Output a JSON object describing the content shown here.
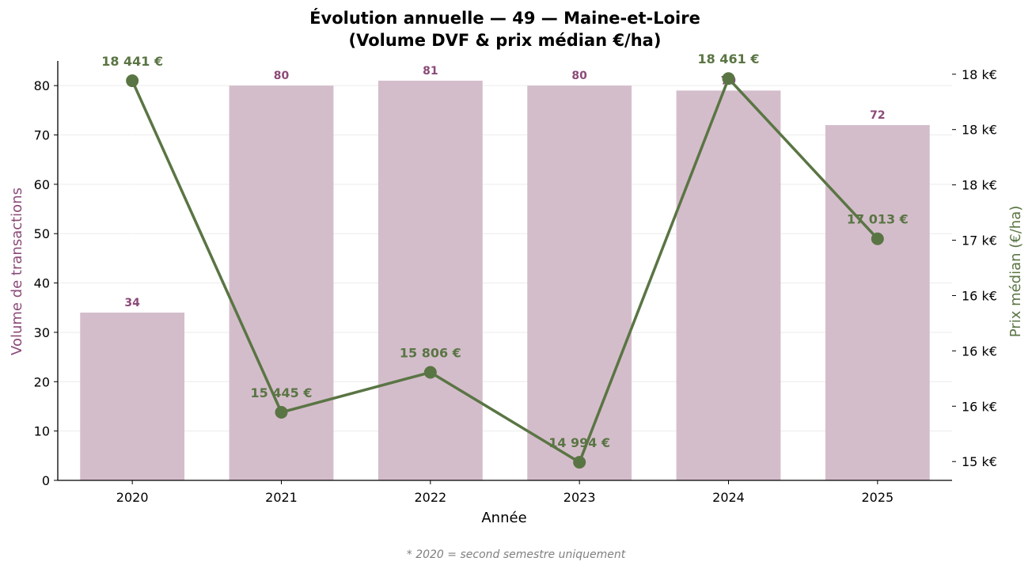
{
  "chart_data": {
    "type": "bar",
    "title_line1": "Évolution annuelle — 49 — Maine-et-Loire",
    "title_line2": "(Volume DVF & prix médian €/ha)",
    "xlabel": "Année",
    "ylabel_left": "Volume de transactions",
    "ylabel_right": "Prix médian (€/ha)",
    "footnote": "* 2020 = second semestre uniquement",
    "categories": [
      "2020",
      "2021",
      "2022",
      "2023",
      "2024",
      "2025"
    ],
    "ylim_left": [
      0,
      85
    ],
    "yticks_left": [
      0,
      10,
      20,
      30,
      40,
      50,
      60,
      70,
      80
    ],
    "ylim_right": [
      14830,
      18620
    ],
    "yticks_right": [
      {
        "value": 15000,
        "label": "15 k€"
      },
      {
        "value": 15500,
        "label": "16 k€"
      },
      {
        "value": 16000,
        "label": "16 k€"
      },
      {
        "value": 16500,
        "label": "16 k€"
      },
      {
        "value": 17000,
        "label": "17 k€"
      },
      {
        "value": 17500,
        "label": "18 k€"
      },
      {
        "value": 18000,
        "label": "18 k€"
      },
      {
        "value": 18500,
        "label": "18 k€"
      }
    ],
    "grid": true,
    "series": [
      {
        "name": "Volume de transactions",
        "kind": "bar",
        "axis": "left",
        "color": "#d4bdcb",
        "label_color": "#8b4a78",
        "values": [
          34,
          80,
          81,
          80,
          79,
          72
        ],
        "labels": [
          "34",
          "80",
          "81",
          "80",
          "79",
          "72"
        ]
      },
      {
        "name": "Prix médian (€/ha)",
        "kind": "line",
        "axis": "right",
        "color": "#5a7544",
        "values": [
          18441,
          15445,
          15806,
          14994,
          18461,
          17013
        ],
        "labels": [
          "18 441 €",
          "15 445 €",
          "15 806 €",
          "14 994 €",
          "18 461 €",
          "17 013 €"
        ]
      }
    ]
  }
}
